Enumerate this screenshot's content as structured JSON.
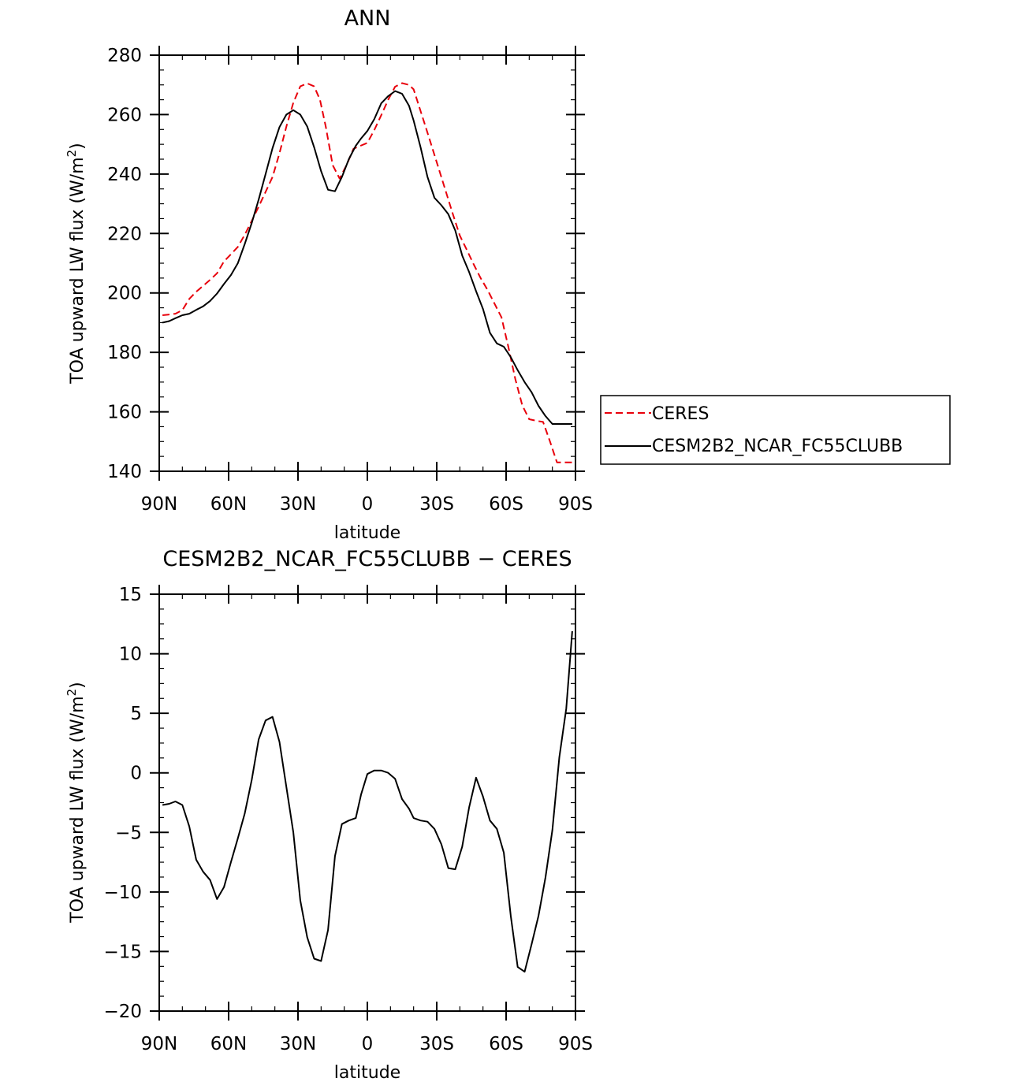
{
  "chart_data": [
    {
      "type": "line",
      "title": "ANN",
      "xlabel": "latitude",
      "ylabel": "TOA upward LW flux (W/m",
      "ylabel_sup": "2",
      "ylabel_close": ")",
      "xlim": [
        -90,
        90
      ],
      "ylim": [
        140,
        280
      ],
      "x_ticks": [
        -90,
        -60,
        -30,
        0,
        30,
        60,
        90
      ],
      "x_tick_labels": [
        "90N",
        "60N",
        "30N",
        "0",
        "30S",
        "60S",
        "90S"
      ],
      "y_ticks": [
        140,
        160,
        180,
        200,
        220,
        240,
        260,
        280
      ],
      "y_tick_labels": [
        "140",
        "160",
        "180",
        "200",
        "220",
        "240",
        "260",
        "280"
      ],
      "grid": false,
      "legend_position": "outside-right",
      "x_axis_note": "x = latitude in degrees, north negative (90N = -90, 90S = 90)",
      "series": [
        {
          "name": "CERES",
          "color": "#e8000b",
          "dash": "dashed",
          "x": [
            -88.6,
            -86,
            -83,
            -80,
            -77,
            -74,
            -71,
            -68,
            -65,
            -62,
            -59,
            -56,
            -53,
            -50,
            -47,
            -44,
            -41,
            -38,
            -35,
            -32,
            -29,
            -26,
            -23,
            -20.5,
            -18,
            -15,
            -12,
            -9,
            -6,
            -3,
            0,
            3,
            6,
            9,
            12,
            15,
            18,
            20,
            22,
            25,
            28,
            31,
            34,
            37,
            40,
            43,
            46,
            49,
            52,
            55,
            58,
            61,
            64,
            67,
            70,
            73,
            76,
            79,
            82,
            85,
            88.6
          ],
          "y": [
            192.5,
            192.7,
            193.0,
            194.2,
            198.0,
            200.4,
            202.4,
            204.4,
            206.6,
            210.6,
            213.0,
            215.5,
            219.6,
            224.2,
            229.0,
            234.0,
            239.0,
            247.0,
            256.0,
            264.0,
            269.5,
            270.5,
            269.5,
            265.0,
            256.0,
            243.0,
            238.5,
            243.0,
            248.5,
            249.5,
            250.5,
            254.8,
            259.8,
            265.0,
            269.4,
            270.6,
            270.0,
            268.5,
            263.7,
            256.4,
            249.0,
            241.5,
            234.0,
            226.5,
            219.3,
            214.5,
            209.6,
            205.0,
            201.0,
            196.4,
            191.8,
            181.8,
            171.0,
            162.2,
            157.5,
            157.0,
            156.6,
            150.0,
            143.0,
            143.0,
            143.0
          ]
        },
        {
          "name": "CESM2B2_NCAR_FC55CLUBB",
          "color": "#000000",
          "dash": "solid",
          "x": [
            -88.6,
            -85.7,
            -83,
            -80,
            -77,
            -74,
            -71,
            -68,
            -65,
            -62,
            -59,
            -56,
            -53,
            -50,
            -47,
            -44,
            -41,
            -38,
            -35,
            -32,
            -29,
            -26,
            -23,
            -20,
            -17,
            -14,
            -11,
            -8,
            -5,
            -2.7,
            0,
            3,
            6,
            9,
            12,
            15,
            18,
            20,
            23,
            26,
            29,
            32,
            35,
            38,
            41,
            44,
            47,
            50,
            53,
            56,
            59,
            62,
            65,
            68,
            71,
            74,
            77,
            80,
            83,
            86,
            88.6
          ],
          "y": [
            190.0,
            190.5,
            191.5,
            192.5,
            193.0,
            194.3,
            195.5,
            197.3,
            199.8,
            203.0,
            206.0,
            210.0,
            216.5,
            223.5,
            231.4,
            240.0,
            248.7,
            255.8,
            260.0,
            261.5,
            260.0,
            256.0,
            249.0,
            241.0,
            234.7,
            234.2,
            239.0,
            245.0,
            249.5,
            252.0,
            254.5,
            258.5,
            263.8,
            266.2,
            267.9,
            267.0,
            263.0,
            258.0,
            249.0,
            239.0,
            232.0,
            229.5,
            226.5,
            221.0,
            212.6,
            207.0,
            200.6,
            194.6,
            186.6,
            183.0,
            181.9,
            178.4,
            174.0,
            170.0,
            166.6,
            162.0,
            158.6,
            155.9,
            155.9,
            155.9,
            155.9
          ]
        }
      ]
    },
    {
      "type": "line",
      "title": "CESM2B2_NCAR_FC55CLUBB − CERES",
      "xlabel": "latitude",
      "ylabel": "TOA upward LW flux (W/m",
      "ylabel_sup": "2",
      "ylabel_close": ")",
      "xlim": [
        -90,
        90
      ],
      "ylim": [
        -20,
        15
      ],
      "x_ticks": [
        -90,
        -60,
        -30,
        0,
        30,
        60,
        90
      ],
      "x_tick_labels": [
        "90N",
        "60N",
        "30N",
        "0",
        "30S",
        "60S",
        "90S"
      ],
      "y_ticks": [
        -20,
        -15,
        -10,
        -5,
        0,
        5,
        10,
        15
      ],
      "y_tick_labels": [
        "−20",
        "−15",
        "−10",
        "−5",
        "0",
        "5",
        "10",
        "15"
      ],
      "grid": false,
      "legend_position": "none",
      "series": [
        {
          "name": "CESM2B2_NCAR_FC55CLUBB − CERES",
          "color": "#000000",
          "dash": "solid",
          "x": [
            -88.6,
            -85.7,
            -83,
            -80,
            -77,
            -74,
            -71,
            -68,
            -65,
            -62,
            -59,
            -56,
            -53,
            -50,
            -47,
            -44,
            -41,
            -38,
            -35,
            -32,
            -29,
            -26,
            -23,
            -20,
            -17,
            -14,
            -11,
            -8,
            -5,
            -2.7,
            0,
            3,
            6,
            9,
            12,
            15,
            18,
            20,
            23,
            26,
            29,
            32,
            35,
            38,
            41,
            44,
            47,
            50,
            53,
            56,
            59,
            62,
            65,
            68,
            71,
            74,
            77,
            80,
            83,
            86,
            88.6
          ],
          "y": [
            -2.7,
            -2.6,
            -2.4,
            -2.7,
            -4.5,
            -7.3,
            -8.3,
            -9.0,
            -10.6,
            -9.6,
            -7.5,
            -5.5,
            -3.4,
            -0.6,
            2.8,
            4.4,
            4.7,
            2.6,
            -1.2,
            -5.0,
            -10.7,
            -13.8,
            -15.6,
            -15.8,
            -13.2,
            -7.0,
            -4.3,
            -4.0,
            -3.8,
            -1.8,
            -0.1,
            0.2,
            0.2,
            0.0,
            -0.5,
            -2.2,
            -3.0,
            -3.8,
            -4.0,
            -4.1,
            -4.7,
            -6.0,
            -8.0,
            -8.1,
            -6.2,
            -2.9,
            -0.4,
            -2.0,
            -4.0,
            -4.7,
            -6.7,
            -12.0,
            -16.3,
            -16.7,
            -14.4,
            -12.0,
            -8.8,
            -4.8,
            1.3,
            5.4,
            11.9
          ]
        }
      ]
    }
  ]
}
